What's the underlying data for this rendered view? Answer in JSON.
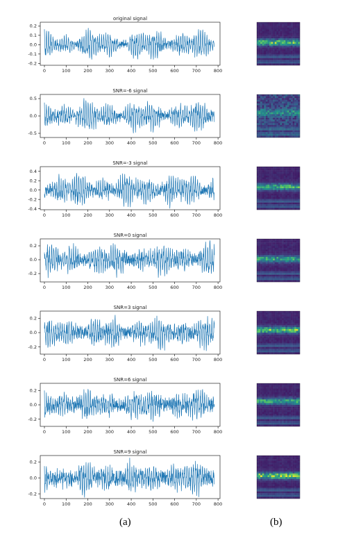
{
  "captions": {
    "left": "(a)",
    "right": "(b)"
  },
  "colors": {
    "line": "#1f77b4",
    "axis": "#000000",
    "text": "#222222"
  },
  "chart_data": [
    {
      "type": "line",
      "title": "original signal",
      "xlim": [
        0,
        790
      ],
      "ylim": [
        -0.22,
        0.24
      ],
      "xticks": [
        0,
        100,
        200,
        300,
        400,
        500,
        600,
        700,
        800
      ],
      "yticks": [
        -0.2,
        -0.1,
        0.0,
        0.1,
        0.2
      ],
      "ytick_labels": [
        "-0.2",
        "-0.1",
        "0.0",
        "0.1",
        "0.2"
      ],
      "amplitude": 0.2,
      "n_points": 784,
      "seed": 11
    },
    {
      "type": "line",
      "title": "SNR=-6 signal",
      "xlim": [
        0,
        790
      ],
      "ylim": [
        -0.62,
        0.62
      ],
      "xticks": [
        0,
        100,
        200,
        300,
        400,
        500,
        600,
        700,
        800
      ],
      "yticks": [
        -0.5,
        0.0,
        0.5
      ],
      "ytick_labels": [
        "-0.5",
        "0.0",
        "0.5"
      ],
      "amplitude": 0.55,
      "n_points": 784,
      "seed": 23
    },
    {
      "type": "line",
      "title": "SNR=-3 signal",
      "xlim": [
        0,
        790
      ],
      "ylim": [
        -0.42,
        0.5
      ],
      "xticks": [
        0,
        100,
        200,
        300,
        400,
        500,
        600,
        700,
        800
      ],
      "yticks": [
        -0.4,
        -0.2,
        0.0,
        0.2,
        0.4
      ],
      "ytick_labels": [
        "-0.4",
        "-0.2",
        "0.0",
        "0.2",
        "0.4"
      ],
      "amplitude": 0.42,
      "n_points": 784,
      "seed": 37
    },
    {
      "type": "line",
      "title": "SNR=0 signal",
      "xlim": [
        0,
        790
      ],
      "ylim": [
        -0.32,
        0.3
      ],
      "xticks": [
        0,
        100,
        200,
        300,
        400,
        500,
        600,
        700,
        800
      ],
      "yticks": [
        -0.2,
        0.0,
        0.2
      ],
      "ytick_labels": [
        "-0.2",
        "0.0",
        "0.2"
      ],
      "amplitude": 0.27,
      "n_points": 784,
      "seed": 41
    },
    {
      "type": "line",
      "title": "SNR=3 signal",
      "xlim": [
        0,
        790
      ],
      "ylim": [
        -0.3,
        0.3
      ],
      "xticks": [
        0,
        100,
        200,
        300,
        400,
        500,
        600,
        700,
        800
      ],
      "yticks": [
        -0.2,
        0.0,
        0.2
      ],
      "ytick_labels": [
        "-0.2",
        "0.0",
        "0.2"
      ],
      "amplitude": 0.25,
      "n_points": 784,
      "seed": 53
    },
    {
      "type": "line",
      "title": "SNR=6 signal",
      "xlim": [
        0,
        790
      ],
      "ylim": [
        -0.3,
        0.3
      ],
      "xticks": [
        0,
        100,
        200,
        300,
        400,
        500,
        600,
        700,
        800
      ],
      "yticks": [
        -0.2,
        0.0,
        0.2
      ],
      "ytick_labels": [
        "-0.2",
        "0.0",
        "0.2"
      ],
      "amplitude": 0.24,
      "n_points": 784,
      "seed": 67
    },
    {
      "type": "line",
      "title": "SNR=9 signal",
      "xlim": [
        0,
        790
      ],
      "ylim": [
        -0.26,
        0.28
      ],
      "xticks": [
        0,
        100,
        200,
        300,
        400,
        500,
        600,
        700,
        800
      ],
      "yticks": [
        -0.2,
        0.0,
        0.2
      ],
      "ytick_labels": [
        "-0.2",
        "0.0",
        "0.2"
      ],
      "amplitude": 0.22,
      "n_points": 784,
      "seed": 79
    }
  ],
  "heatmaps": [
    {
      "type": "heatmap",
      "seed": 101,
      "bright_band": 0.45,
      "intensity": 0.85
    },
    {
      "type": "heatmap",
      "seed": 202,
      "bright_band": 0.4,
      "intensity": 0.35
    },
    {
      "type": "heatmap",
      "seed": 303,
      "bright_band": 0.45,
      "intensity": 0.75
    },
    {
      "type": "heatmap",
      "seed": 404,
      "bright_band": 0.45,
      "intensity": 0.7
    },
    {
      "type": "heatmap",
      "seed": 505,
      "bright_band": 0.42,
      "intensity": 0.85
    },
    {
      "type": "heatmap",
      "seed": 606,
      "bright_band": 0.4,
      "intensity": 0.7
    },
    {
      "type": "heatmap",
      "seed": 707,
      "bright_band": 0.45,
      "intensity": 0.95
    }
  ]
}
